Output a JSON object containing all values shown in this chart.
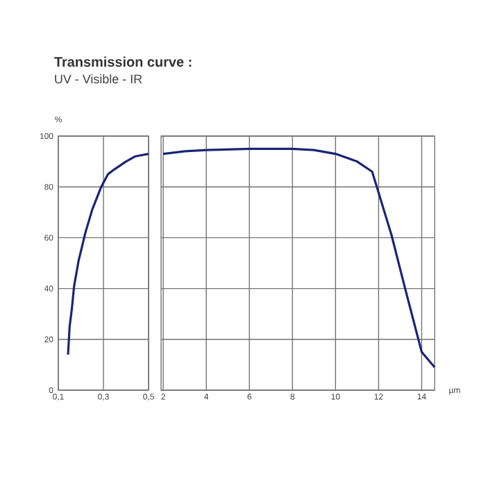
{
  "chart_data": [
    {
      "type": "line",
      "title": "Transmission curve :",
      "subtitle": "UV - Visible - IR",
      "ylabel": "%",
      "x": [
        0.143,
        0.15,
        0.16,
        0.17,
        0.19,
        0.22,
        0.25,
        0.29,
        0.32,
        0.35,
        0.4,
        0.44,
        0.5
      ],
      "series": [
        {
          "color": "#1b2475",
          "values": [
            14,
            25,
            32,
            41,
            51,
            62,
            71,
            80,
            85,
            87,
            90,
            92,
            93
          ]
        }
      ],
      "xlim": [
        0.1,
        0.5
      ],
      "xticks": [
        {
          "value": 0.1,
          "label": "0,1"
        },
        {
          "value": 0.3,
          "label": "0,3"
        },
        {
          "value": 0.5,
          "label": "0,5"
        }
      ],
      "ylim": [
        0,
        100
      ],
      "yticks": [
        0,
        20,
        40,
        60,
        80,
        100
      ],
      "grid": true,
      "line_style": "solid"
    },
    {
      "type": "line",
      "xlabel": "µm",
      "x": [
        2,
        3,
        4,
        6,
        8,
        9,
        10,
        11,
        11.7,
        12.6,
        13.2,
        13.6,
        14,
        14.2,
        14.6
      ],
      "series": [
        {
          "color": "#1b2475",
          "values": [
            93,
            94,
            94.5,
            95,
            95,
            94.5,
            93,
            90,
            86,
            61,
            41,
            28,
            15,
            13,
            9
          ]
        }
      ],
      "xlim": [
        1.9,
        14.6
      ],
      "xticks": [
        2,
        4,
        6,
        8,
        10,
        12,
        14
      ],
      "ylim": [
        0,
        100
      ],
      "yticks": [
        0,
        20,
        40,
        60,
        80,
        100
      ],
      "grid": true,
      "tick_labels": "x",
      "line_style": "solid"
    }
  ]
}
